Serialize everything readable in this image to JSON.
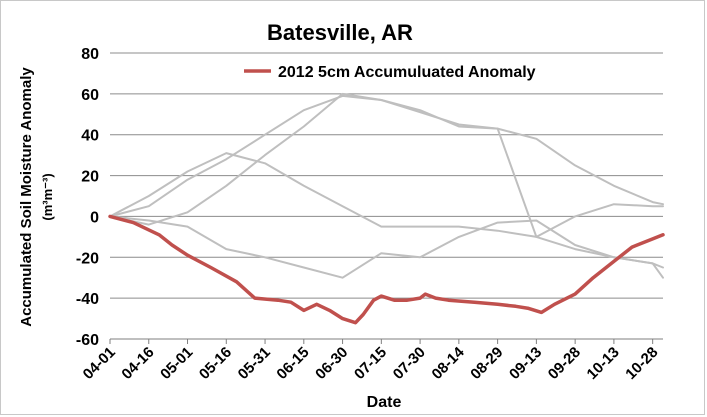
{
  "chart_data": {
    "type": "line",
    "title": "Batesville, AR",
    "xlabel": "Date",
    "ylabel": "Accumulated Soil Moisture Anomaly",
    "yunit": "(m³m⁻³)",
    "ylim": [
      -60,
      80
    ],
    "yticks": [
      -60,
      -40,
      -20,
      0,
      20,
      40,
      60,
      80
    ],
    "grid": true,
    "legend_position": "top-center",
    "categories": [
      "04-01",
      "04-16",
      "05-01",
      "05-16",
      "05-31",
      "06-15",
      "06-30",
      "07-15",
      "07-30",
      "08-14",
      "08-29",
      "09-13",
      "09-28",
      "10-13",
      "10-28"
    ],
    "x_start": "2012-04-01",
    "x_end": "2012-11-01",
    "highlight": {
      "name": "2012 5cm Accumuluated Anomaly",
      "color": "#c0504d",
      "dates": [
        "04-01",
        "04-10",
        "04-20",
        "04-25",
        "05-01",
        "05-10",
        "05-20",
        "05-27",
        "06-05",
        "06-10",
        "06-15",
        "06-20",
        "06-25",
        "06-30",
        "07-05",
        "07-08",
        "07-12",
        "07-15",
        "07-20",
        "07-25",
        "07-30",
        "08-01",
        "08-05",
        "08-10",
        "08-20",
        "08-29",
        "09-05",
        "09-10",
        "09-15",
        "09-20",
        "09-28",
        "10-05",
        "10-13",
        "10-20",
        "10-28",
        "11-01"
      ],
      "values": [
        0,
        -3,
        -9,
        -14,
        -19,
        -25,
        -32,
        -40,
        -41,
        -42,
        -46,
        -43,
        -46,
        -50,
        -52,
        -48,
        -41,
        -39,
        -41,
        -41,
        -40,
        -38,
        -40,
        -41,
        -42,
        -43,
        -44,
        -45,
        -47,
        -43,
        -38,
        -30,
        -22,
        -15,
        -11,
        -9
      ]
    },
    "background_series": [
      {
        "color": "#bfbfbf",
        "dates": [
          "04-01",
          "04-16",
          "05-01",
          "05-16",
          "05-31",
          "06-15",
          "06-30",
          "07-15",
          "07-30",
          "08-14",
          "08-29",
          "09-13",
          "09-28",
          "10-13",
          "10-28",
          "11-01"
        ],
        "values": [
          0,
          5,
          18,
          28,
          40,
          52,
          59,
          57,
          51,
          45,
          43,
          38,
          25,
          15,
          7,
          6
        ]
      },
      {
        "color": "#bfbfbf",
        "dates": [
          "04-01",
          "04-16",
          "05-01",
          "05-16",
          "05-31",
          "06-15",
          "06-30",
          "07-15",
          "07-30",
          "08-14",
          "08-29",
          "09-13",
          "09-28",
          "10-13",
          "10-28",
          "11-01"
        ],
        "values": [
          0,
          10,
          22,
          31,
          26,
          15,
          5,
          -5,
          -5,
          -5,
          -7,
          -10,
          -16,
          -20,
          -23,
          -30
        ]
      },
      {
        "color": "#bfbfbf",
        "dates": [
          "04-01",
          "04-16",
          "05-01",
          "05-16",
          "05-31",
          "06-15",
          "06-30",
          "07-15",
          "07-30",
          "08-14",
          "08-29",
          "09-13",
          "09-28",
          "10-13",
          "10-28",
          "11-01"
        ],
        "values": [
          0,
          -2,
          -5,
          -16,
          -20,
          -25,
          -30,
          -18,
          -20,
          -10,
          -3,
          -2,
          -14,
          -20,
          -23,
          -25
        ]
      },
      {
        "color": "#bfbfbf",
        "dates": [
          "04-01",
          "04-16",
          "05-01",
          "05-16",
          "05-31",
          "06-15",
          "06-30",
          "07-15",
          "07-30",
          "08-14",
          "08-29",
          "09-13",
          "09-28",
          "10-13",
          "10-28",
          "11-01"
        ],
        "values": [
          0,
          -4,
          2,
          15,
          30,
          44,
          60,
          57,
          52,
          44,
          43,
          -10,
          0,
          6,
          5,
          5
        ]
      }
    ]
  }
}
